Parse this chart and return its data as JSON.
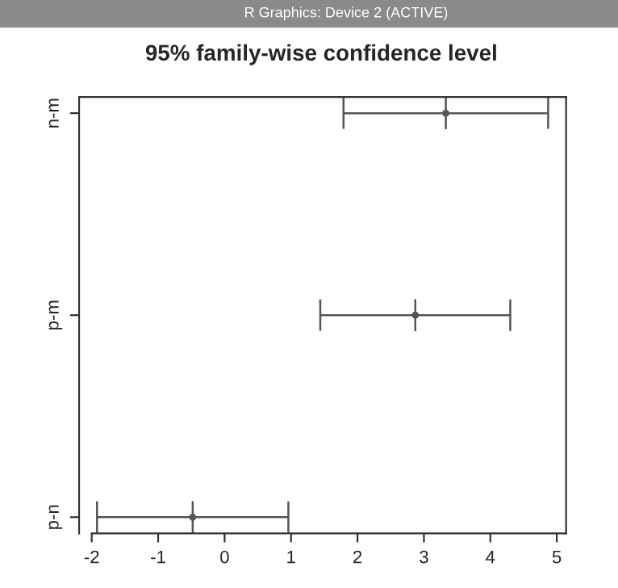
{
  "chart_data": {
    "type": "scatter",
    "orientation": "horizontal",
    "title": "95% family-wise confidence level",
    "annotations": [
      "R Graphics: Device 2 (ACTIVE)"
    ],
    "categories": [
      "n-m",
      "p-m",
      "p-n"
    ],
    "values": [
      3.33,
      2.87,
      -0.48
    ],
    "errors": [
      [
        1.79,
        4.87
      ],
      [
        1.44,
        4.3
      ],
      [
        -1.92,
        0.96
      ]
    ],
    "color": "#555555",
    "xlim": [
      -2.19,
      5.14
    ],
    "xticks": [
      -2,
      -1,
      0,
      1,
      2,
      3,
      4,
      5
    ],
    "grid": false,
    "legend": false
  }
}
